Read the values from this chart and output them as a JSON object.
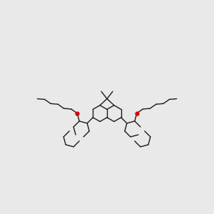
{
  "background_color": "#e9e9e9",
  "bond_color": "#1a1a1a",
  "oxygen_color": "#dd0000",
  "lw": 1.0,
  "figsize": [
    3.0,
    3.0
  ],
  "dpi": 100
}
